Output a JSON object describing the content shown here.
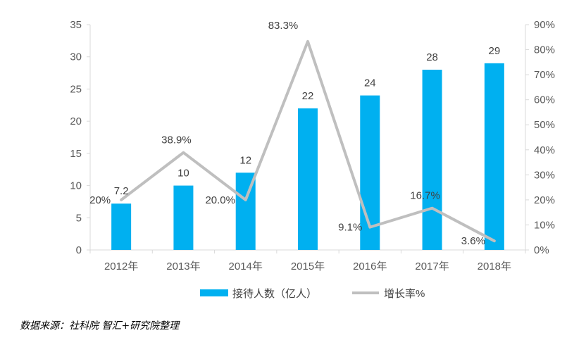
{
  "chart_data": {
    "type": "bar",
    "categories": [
      "2012年",
      "2013年",
      "2014年",
      "2015年",
      "2016年",
      "2017年",
      "2018年"
    ],
    "series": [
      {
        "name": "接待人数（亿人）",
        "type": "bar",
        "axis": "left",
        "values": [
          7.2,
          10,
          12,
          22,
          24,
          28,
          29
        ],
        "labels": [
          "7.2",
          "10",
          "12",
          "22",
          "24",
          "28",
          "29"
        ],
        "color": "#00B0F0"
      },
      {
        "name": "增长率%",
        "type": "line",
        "axis": "right",
        "values": [
          20,
          38.9,
          20.0,
          83.3,
          9.1,
          16.7,
          3.6
        ],
        "labels": [
          "20%",
          "38.9%",
          "20.0%",
          "83.3%",
          "9.1%",
          "16.7%",
          "3.6%"
        ],
        "color": "#BFBFBF"
      }
    ],
    "y_left": {
      "min": 0,
      "max": 35,
      "step": 5,
      "tick_labels": [
        "0",
        "5",
        "10",
        "15",
        "20",
        "25",
        "30",
        "35"
      ]
    },
    "y_right": {
      "min": 0,
      "max": 90,
      "step": 10,
      "tick_labels": [
        "0%",
        "10%",
        "20%",
        "30%",
        "40%",
        "50%",
        "60%",
        "70%",
        "80%",
        "90%"
      ]
    },
    "grid": false,
    "legend_position": "bottom"
  },
  "source_note": "数据来源：社科院 智汇+研究院整理"
}
